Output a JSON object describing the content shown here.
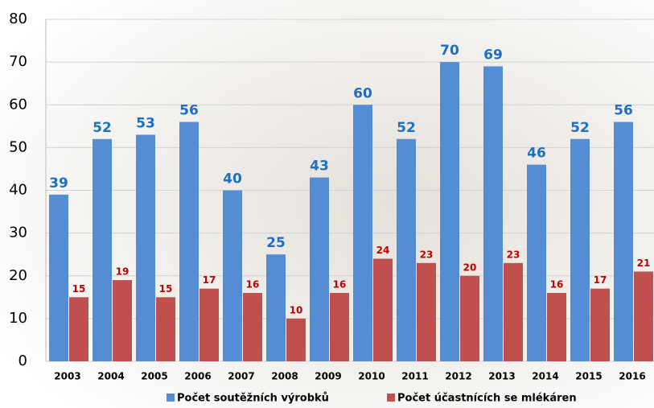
{
  "chart_data": {
    "type": "bar",
    "categories": [
      "2003",
      "2004",
      "2005",
      "2006",
      "2007",
      "2008",
      "2009",
      "2010",
      "2011",
      "2012",
      "2013",
      "2014",
      "2015",
      "2016"
    ],
    "series": [
      {
        "name": "Počet soutěžních výrobků",
        "color": "#548dd4",
        "values": [
          39,
          52,
          53,
          56,
          40,
          25,
          43,
          60,
          52,
          70,
          69,
          46,
          52,
          56
        ]
      },
      {
        "name": "Počet účastnících se mlékáren",
        "color": "#c0504d",
        "values": [
          15,
          19,
          15,
          17,
          16,
          10,
          16,
          24,
          23,
          20,
          23,
          16,
          17,
          21
        ]
      }
    ],
    "ylim": [
      0,
      80
    ],
    "yticks": [
      0,
      10,
      20,
      30,
      40,
      50,
      60,
      70,
      80
    ],
    "grid": true,
    "legend": "bottom"
  }
}
